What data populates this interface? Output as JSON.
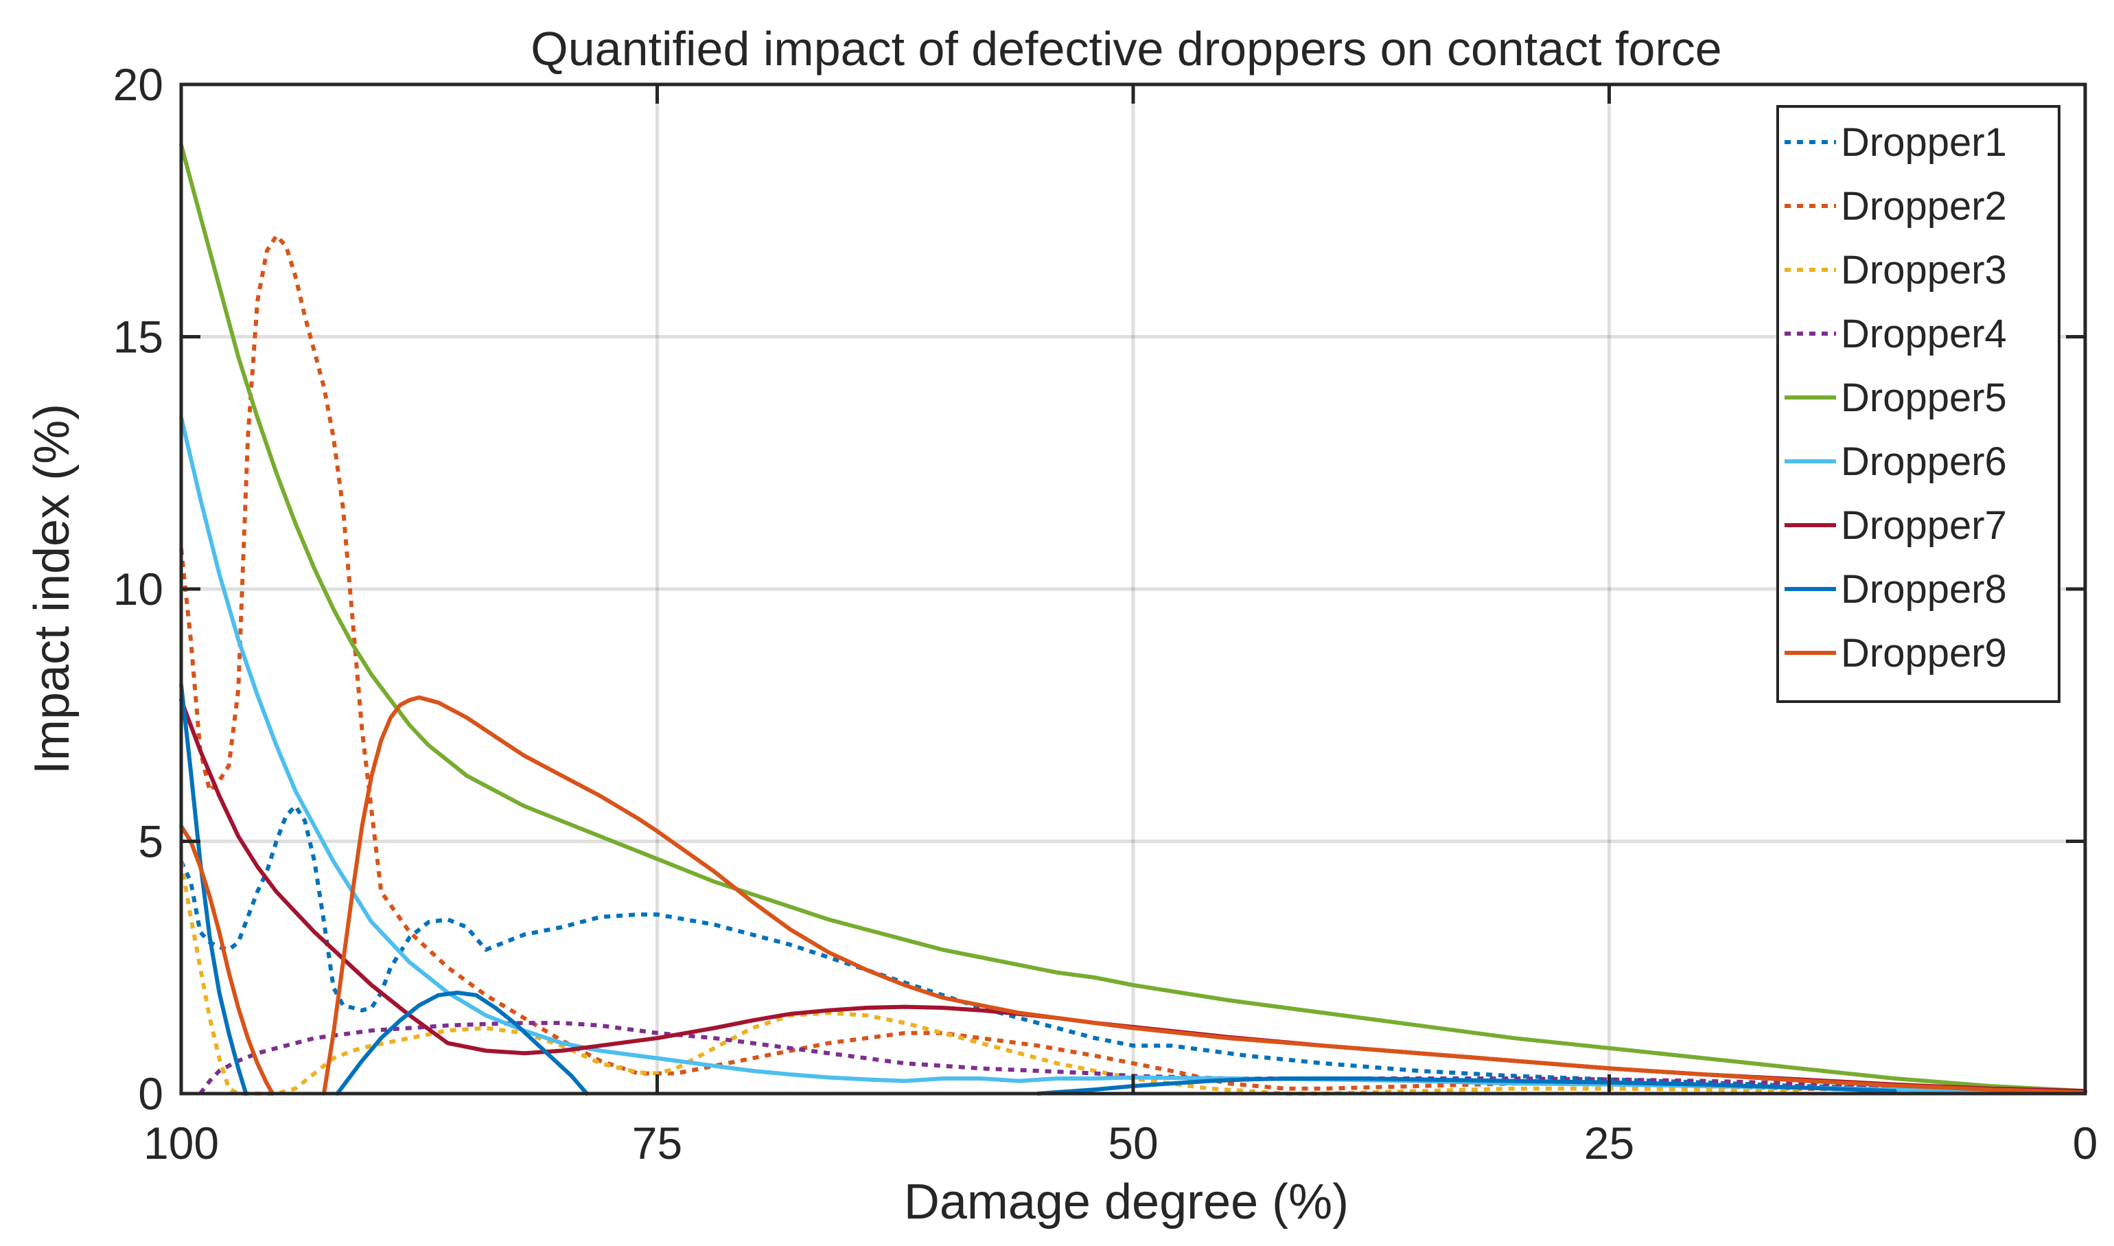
{
  "chart_data": {
    "type": "line",
    "title": "Quantified impact of defective droppers on contact force",
    "xlabel": "Damage degree (%)",
    "ylabel": "Impact index (%)",
    "xlim": [
      100,
      0
    ],
    "ylim": [
      0,
      20
    ],
    "xticks": [
      100,
      75,
      50,
      25,
      0
    ],
    "yticks": [
      0,
      5,
      10,
      15,
      20
    ],
    "grid": true,
    "legend_position": "top-right",
    "series": [
      {
        "name": "Dropper1",
        "color": "#0072BD",
        "style": "dotted",
        "x": [
          100,
          99.5,
          99,
          98.5,
          98,
          97.5,
          97,
          96.5,
          96,
          95.5,
          95,
          94.5,
          94,
          93.5,
          93,
          92.5,
          92,
          91.5,
          91,
          90.5,
          90,
          89.5,
          89,
          88,
          87,
          86,
          85,
          84,
          83,
          82,
          80,
          78,
          76,
          75,
          72,
          70,
          68,
          66,
          64,
          62,
          60,
          58,
          56,
          54,
          52,
          50,
          48,
          46,
          44,
          40,
          35,
          30,
          25,
          20,
          15,
          10,
          7
        ],
        "y": [
          4.6,
          4.2,
          3.2,
          3.0,
          2.9,
          2.85,
          3.0,
          3.5,
          4.0,
          4.4,
          5.0,
          5.5,
          5.7,
          5.4,
          4.6,
          3.4,
          2.1,
          1.75,
          1.7,
          1.65,
          1.7,
          2.0,
          2.5,
          3.1,
          3.4,
          3.45,
          3.3,
          2.85,
          3.0,
          3.15,
          3.3,
          3.5,
          3.55,
          3.55,
          3.35,
          3.15,
          2.95,
          2.7,
          2.45,
          2.2,
          1.95,
          1.7,
          1.5,
          1.3,
          1.1,
          0.95,
          0.95,
          0.85,
          0.75,
          0.6,
          0.45,
          0.35,
          0.28,
          0.22,
          0.15,
          0.1,
          0.08
        ]
      },
      {
        "name": "Dropper2",
        "color": "#D95319",
        "style": "dotted",
        "x": [
          100,
          99.5,
          99,
          98.5,
          98,
          97.5,
          97,
          96.5,
          96,
          95.5,
          95,
          94.5,
          94,
          93.5,
          93,
          92.5,
          92,
          91.5,
          91,
          90.5,
          90,
          89.5,
          88,
          86,
          84,
          82,
          80,
          78,
          76,
          74,
          72,
          70,
          68,
          66,
          64,
          62,
          60,
          58,
          55,
          52,
          50,
          48,
          45,
          42,
          40,
          35,
          30,
          25,
          20,
          15,
          10,
          7
        ],
        "y": [
          10.8,
          9.0,
          6.8,
          6.0,
          6.2,
          6.5,
          8.0,
          13.0,
          15.7,
          16.7,
          17.0,
          16.8,
          16.2,
          15.4,
          14.7,
          14.0,
          13.0,
          11.6,
          9.4,
          7.2,
          5.6,
          4.0,
          3.2,
          2.5,
          1.95,
          1.5,
          1.05,
          0.65,
          0.4,
          0.4,
          0.55,
          0.7,
          0.85,
          1.0,
          1.1,
          1.2,
          1.2,
          1.1,
          0.95,
          0.75,
          0.6,
          0.45,
          0.2,
          0.1,
          0.1,
          0.15,
          0.2,
          0.2,
          0.15,
          0.1,
          0.08,
          0.05
        ]
      },
      {
        "name": "Dropper3",
        "color": "#EDB120",
        "style": "dotted",
        "x": [
          100,
          99.5,
          99,
          98.5,
          98,
          97.5,
          97,
          96.5,
          96,
          95,
          94,
          93,
          92,
          91,
          90,
          88,
          86,
          84,
          82,
          80,
          78,
          76,
          75,
          74,
          72,
          70,
          68,
          66,
          64,
          62,
          60,
          58,
          56,
          54,
          52,
          50,
          48,
          46,
          44,
          42,
          40,
          35,
          30,
          25,
          20,
          15
        ],
        "y": [
          4.6,
          3.5,
          2.5,
          1.5,
          0.7,
          0.1,
          0.0,
          0.0,
          0.0,
          0.0,
          0.1,
          0.4,
          0.7,
          0.85,
          0.95,
          1.1,
          1.25,
          1.3,
          1.2,
          0.95,
          0.6,
          0.42,
          0.4,
          0.5,
          0.9,
          1.3,
          1.55,
          1.6,
          1.55,
          1.4,
          1.2,
          1.0,
          0.8,
          0.6,
          0.45,
          0.3,
          0.2,
          0.1,
          0.05,
          0.0,
          0.0,
          0.05,
          0.1,
          0.1,
          0.08,
          0.05
        ]
      },
      {
        "name": "Dropper4",
        "color": "#7E2F8E",
        "style": "dotted",
        "x": [
          99,
          98.5,
          98,
          97,
          96,
          95,
          94,
          93,
          92,
          90,
          88,
          86,
          84,
          82,
          80,
          78,
          76,
          75,
          72,
          70,
          68,
          66,
          64,
          62,
          60,
          58,
          55,
          52,
          50,
          45,
          40,
          35,
          30,
          25,
          20,
          15,
          10,
          7
        ],
        "y": [
          0.0,
          0.25,
          0.45,
          0.65,
          0.8,
          0.9,
          1.0,
          1.1,
          1.15,
          1.25,
          1.3,
          1.35,
          1.38,
          1.4,
          1.4,
          1.35,
          1.25,
          1.2,
          1.1,
          1.0,
          0.9,
          0.8,
          0.7,
          0.6,
          0.55,
          0.5,
          0.45,
          0.4,
          0.35,
          0.3,
          0.3,
          0.3,
          0.3,
          0.28,
          0.25,
          0.2,
          0.12,
          0.08
        ]
      },
      {
        "name": "Dropper5",
        "color": "#77AC30",
        "style": "solid",
        "x": [
          100,
          99,
          98,
          97,
          96,
          95,
          94,
          93,
          92,
          91,
          90,
          89,
          88,
          87,
          86,
          85,
          84,
          83,
          82,
          80,
          78,
          76,
          75,
          72,
          70,
          68,
          66,
          64,
          62,
          60,
          58,
          56,
          54,
          52,
          50,
          45,
          40,
          35,
          30,
          25,
          20,
          15,
          10,
          5,
          0
        ],
        "y": [
          18.8,
          17.4,
          16.0,
          14.6,
          13.4,
          12.3,
          11.3,
          10.4,
          9.6,
          8.9,
          8.3,
          7.8,
          7.3,
          6.9,
          6.6,
          6.3,
          6.1,
          5.9,
          5.7,
          5.4,
          5.1,
          4.8,
          4.65,
          4.2,
          3.95,
          3.7,
          3.45,
          3.25,
          3.05,
          2.85,
          2.7,
          2.55,
          2.4,
          2.3,
          2.15,
          1.85,
          1.6,
          1.35,
          1.1,
          0.9,
          0.7,
          0.5,
          0.3,
          0.15,
          0.05
        ]
      },
      {
        "name": "Dropper6",
        "color": "#4DBEEE",
        "style": "solid",
        "x": [
          100,
          99,
          98,
          97,
          96,
          95,
          94,
          93,
          92,
          91,
          90,
          88,
          86,
          84,
          82,
          80,
          78,
          76,
          75,
          72,
          70,
          68,
          66,
          64,
          62,
          60,
          58,
          56,
          54,
          52,
          50,
          45,
          40,
          35,
          30,
          25,
          20,
          15,
          10,
          5,
          0
        ],
        "y": [
          13.4,
          11.8,
          10.3,
          9.0,
          7.9,
          6.9,
          6.0,
          5.3,
          4.6,
          4.0,
          3.4,
          2.6,
          2.0,
          1.55,
          1.25,
          1.0,
          0.85,
          0.75,
          0.7,
          0.55,
          0.45,
          0.38,
          0.32,
          0.28,
          0.25,
          0.3,
          0.3,
          0.25,
          0.3,
          0.3,
          0.32,
          0.3,
          0.28,
          0.25,
          0.2,
          0.18,
          0.15,
          0.12,
          0.08,
          0.05,
          0.02
        ]
      },
      {
        "name": "Dropper7",
        "color": "#A2142F",
        "style": "solid",
        "x": [
          100,
          99,
          98,
          97,
          96,
          95,
          94,
          93,
          92,
          91,
          90,
          88,
          86,
          84,
          82,
          80,
          78,
          76,
          75,
          72,
          70,
          68,
          66,
          64,
          62,
          60,
          58,
          56,
          54,
          52,
          50,
          45,
          40,
          35,
          30,
          25,
          20,
          15,
          10,
          5,
          0
        ],
        "y": [
          7.8,
          6.8,
          5.9,
          5.1,
          4.5,
          4.0,
          3.6,
          3.2,
          2.85,
          2.5,
          2.15,
          1.55,
          1.0,
          0.85,
          0.8,
          0.85,
          0.95,
          1.05,
          1.1,
          1.3,
          1.45,
          1.58,
          1.65,
          1.7,
          1.72,
          1.7,
          1.65,
          1.58,
          1.5,
          1.4,
          1.32,
          1.12,
          0.95,
          0.8,
          0.65,
          0.5,
          0.38,
          0.28,
          0.18,
          0.1,
          0.05
        ]
      },
      {
        "name": "Dropper8",
        "color": "#0072BD",
        "style": "solid",
        "segments": [
          {
            "x": [
              100,
              99.5,
              99,
              98.5,
              98,
              97.5,
              97,
              96.6
            ],
            "y": [
              8.1,
              6.4,
              4.6,
              3.1,
              2.0,
              1.2,
              0.5,
              0.0
            ]
          },
          {
            "x": [
              91.8,
              90.5,
              89.5,
              88.5,
              87.5,
              86.5,
              85.5,
              84.5,
              83.5,
              82.5,
              81.5,
              80.5,
              79.5,
              78.7
            ],
            "y": [
              0.0,
              0.65,
              1.1,
              1.45,
              1.75,
              1.95,
              2.0,
              1.95,
              1.7,
              1.4,
              1.05,
              0.7,
              0.35,
              0.0
            ]
          },
          {
            "x": [
              55,
              52,
              50,
              48,
              46,
              44,
              42,
              40,
              38,
              35,
              30,
              25,
              20,
              15,
              10
            ],
            "y": [
              0.0,
              0.08,
              0.15,
              0.2,
              0.25,
              0.28,
              0.3,
              0.3,
              0.3,
              0.28,
              0.25,
              0.22,
              0.18,
              0.12,
              0.05
            ]
          }
        ]
      },
      {
        "name": "Dropper9",
        "color": "#D95319",
        "style": "solid",
        "segments": [
          {
            "x": [
              100,
              99.5,
              99,
              98.5,
              98,
              97.5,
              97,
              96.5,
              96,
              95.5,
              95.2
            ],
            "y": [
              5.3,
              5.0,
              4.5,
              3.9,
              3.2,
              2.4,
              1.7,
              1.1,
              0.6,
              0.2,
              0.0
            ]
          },
          {
            "x": [
              92.5,
              92,
              91.5,
              91,
              90.5,
              90,
              89.5,
              89,
              88.5,
              88,
              87.5,
              87,
              86.5,
              86,
              85,
              84,
              83,
              82,
              80,
              78,
              76,
              75,
              72,
              70,
              68,
              66,
              64,
              62,
              60,
              58,
              56,
              54,
              52,
              50,
              45,
              40,
              35,
              30,
              25,
              20,
              15,
              10,
              5,
              0
            ],
            "y": [
              0.0,
              1.2,
              2.6,
              4.0,
              5.3,
              6.3,
              7.0,
              7.45,
              7.7,
              7.8,
              7.85,
              7.8,
              7.75,
              7.65,
              7.45,
              7.2,
              6.95,
              6.7,
              6.3,
              5.9,
              5.45,
              5.2,
              4.4,
              3.8,
              3.25,
              2.8,
              2.45,
              2.15,
              1.9,
              1.75,
              1.6,
              1.5,
              1.4,
              1.3,
              1.1,
              0.95,
              0.8,
              0.65,
              0.5,
              0.38,
              0.26,
              0.16,
              0.08,
              0.02
            ]
          }
        ]
      }
    ]
  }
}
